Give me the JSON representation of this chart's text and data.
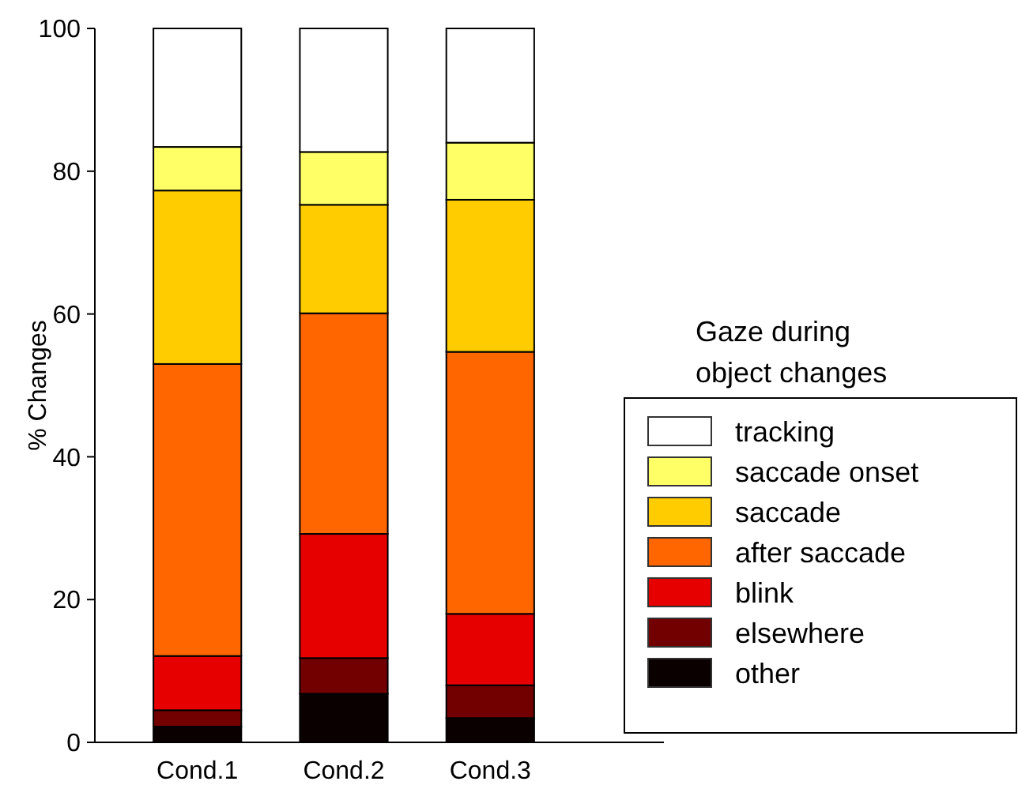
{
  "chart_data": {
    "type": "bar",
    "stacked": true,
    "categories": [
      "Cond.1",
      "Cond.2",
      "Cond.3"
    ],
    "ylabel": "% Changes",
    "legend_title": "Gaze during\nobject changes",
    "legend": "right",
    "ylim": [
      0,
      100
    ],
    "yticks": [
      0,
      20,
      40,
      60,
      80,
      100
    ],
    "series": [
      {
        "name": "other",
        "color": "#0a0000",
        "values": [
          2.2,
          6.8,
          3.4
        ]
      },
      {
        "name": "elsewhere",
        "color": "#730000",
        "values": [
          2.3,
          5.0,
          4.6
        ]
      },
      {
        "name": "blink",
        "color": "#e60000",
        "values": [
          7.6,
          17.4,
          10.0
        ]
      },
      {
        "name": "after saccade",
        "color": "#ff6600",
        "values": [
          40.9,
          30.9,
          36.7
        ]
      },
      {
        "name": "saccade",
        "color": "#ffcc00",
        "values": [
          24.3,
          15.2,
          21.3
        ]
      },
      {
        "name": "saccade onset",
        "color": "#ffff66",
        "values": [
          6.1,
          7.4,
          8.0
        ]
      },
      {
        "name": "tracking",
        "color": "#ffffff",
        "values": [
          16.6,
          17.3,
          16.0
        ]
      }
    ]
  }
}
